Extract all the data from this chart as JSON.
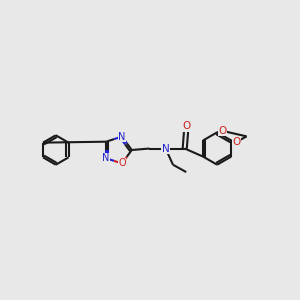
{
  "background_color": "#e8e8e8",
  "bond_color": "#1a1a1a",
  "nitrogen_color": "#2020cc",
  "oxygen_color": "#cc2020",
  "lw": 1.5,
  "dbo": 0.07,
  "figsize": [
    3.0,
    3.0
  ],
  "dpi": 100,
  "xlim": [
    0,
    10
  ],
  "ylim": [
    2.5,
    7.5
  ]
}
